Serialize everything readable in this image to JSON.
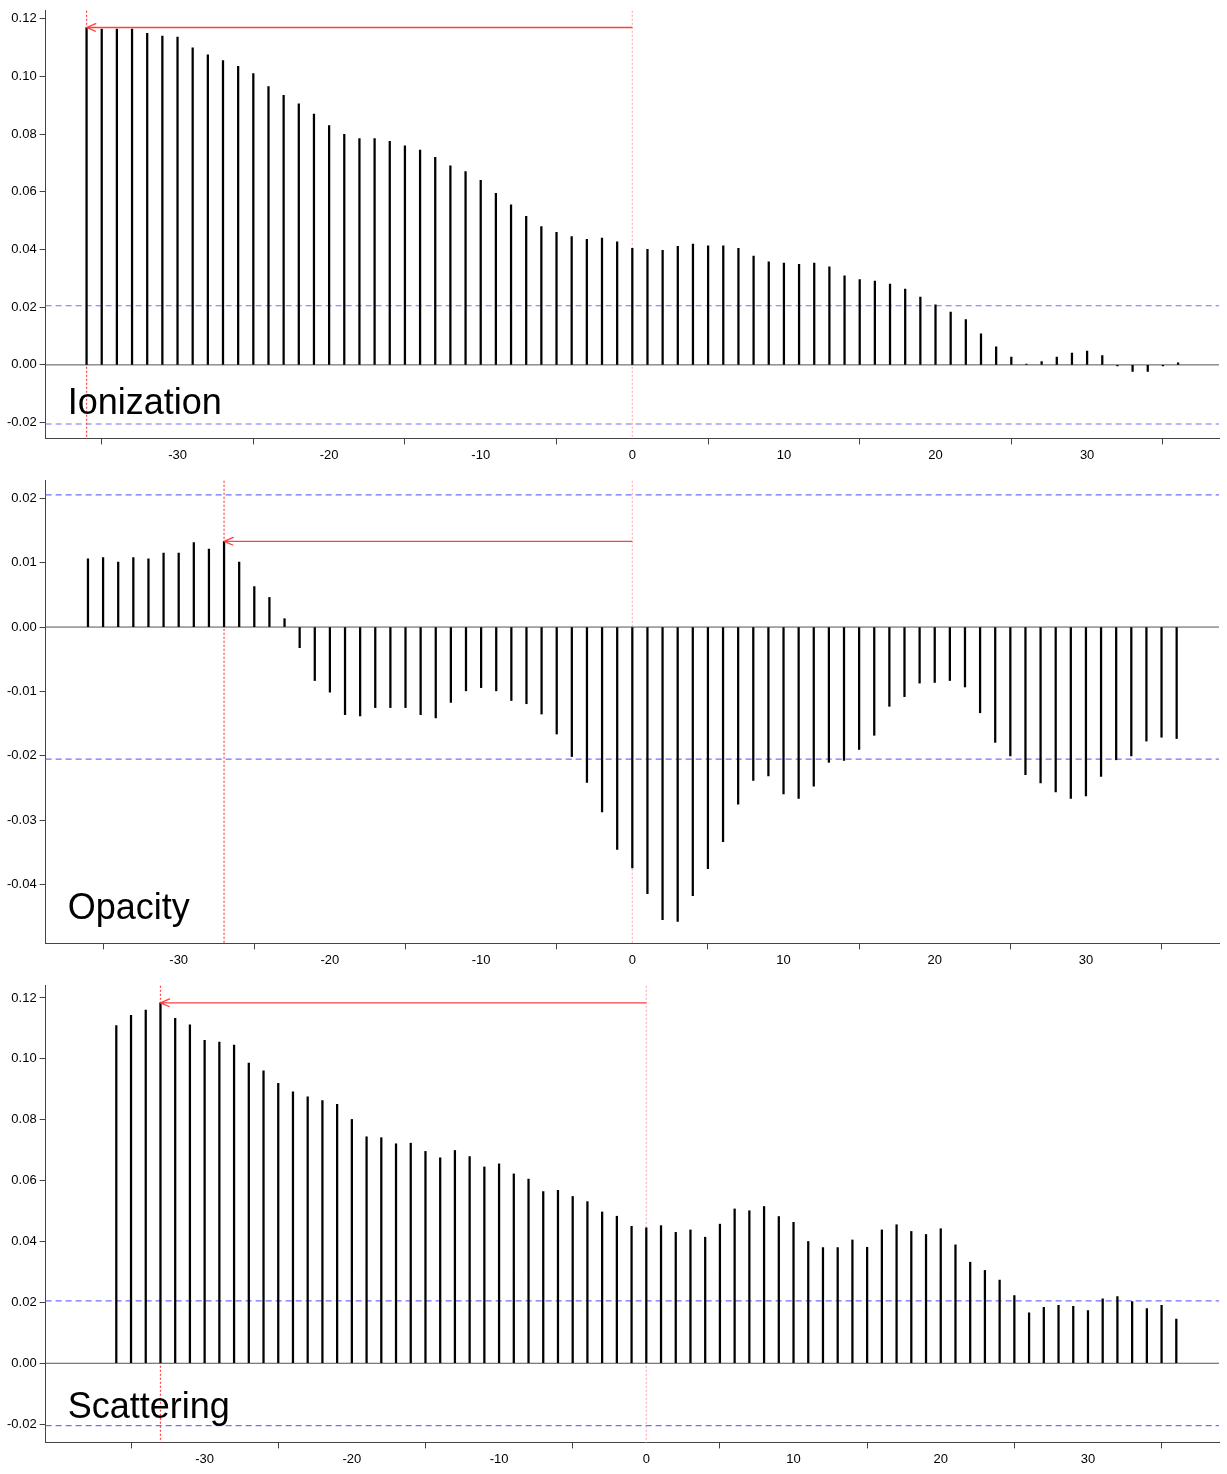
{
  "chart_data": [
    {
      "type": "bar",
      "annotations": [
        "Ionization"
      ],
      "grid": false,
      "legend": false,
      "series": [
        {
          "color": "#000000",
          "x": [
            -36,
            -35,
            -34,
            -33,
            -32,
            -31,
            -30,
            -29,
            -28,
            -27,
            -26,
            -25,
            -24,
            -23,
            -22,
            -21,
            -20,
            -19,
            -18,
            -17,
            -16,
            -15,
            -14,
            -13,
            -12,
            -11,
            -10,
            -9,
            -8,
            -7,
            -6,
            -5,
            -4,
            -3,
            -2,
            -1,
            0,
            1,
            2,
            3,
            4,
            5,
            6,
            7,
            8,
            9,
            10,
            11,
            12,
            13,
            14,
            15,
            16,
            17,
            18,
            19,
            20,
            21,
            22,
            23,
            24,
            25,
            26,
            27,
            28,
            29,
            30,
            31,
            32,
            33,
            34,
            35,
            36
          ],
          "values": [
            0.117,
            0.1165,
            0.1165,
            0.1165,
            0.115,
            0.114,
            0.1137,
            0.11,
            0.1075,
            0.1055,
            0.1035,
            0.101,
            0.0965,
            0.0935,
            0.0905,
            0.087,
            0.083,
            0.08,
            0.0785,
            0.0785,
            0.0775,
            0.076,
            0.0745,
            0.072,
            0.069,
            0.067,
            0.064,
            0.0595,
            0.0555,
            0.0515,
            0.048,
            0.046,
            0.0445,
            0.0435,
            0.044,
            0.0427,
            0.0404,
            0.0401,
            0.0397,
            0.0411,
            0.0419,
            0.0413,
            0.0413,
            0.0404,
            0.0377,
            0.0357,
            0.0353,
            0.0349,
            0.0353,
            0.034,
            0.0309,
            0.0296,
            0.0291,
            0.028,
            0.0263,
            0.0235,
            0.0208,
            0.0183,
            0.0157,
            0.0108,
            0.0063,
            0.0027,
            0.0003,
            0.0011,
            0.0027,
            0.0041,
            0.0048,
            0.0032,
            -0.0004,
            -0.0023,
            -0.0023,
            -0.0004,
            0.0007
          ]
        },
        {
          "type": "line",
          "color": "#ff4040",
          "x": [
            0,
            -36
          ],
          "values": [
            0.117,
            0.117
          ]
        }
      ],
      "xlim": [
        -38.7,
        38.7
      ],
      "xticks": [
        -30,
        -20,
        -10,
        0,
        10,
        20,
        30
      ],
      "ylim": [
        -0.0255,
        0.1228
      ],
      "yticks": [
        {
          "value": -0.02,
          "label": "-0.02"
        },
        {
          "value": 0,
          "label": "0.00"
        },
        {
          "value": 0.02,
          "label": "0.02"
        },
        {
          "value": 0.04,
          "label": "0.04"
        },
        {
          "value": 0.06,
          "label": "0.06"
        },
        {
          "value": 0.08,
          "label": "0.08"
        },
        {
          "value": 0.1,
          "label": "0.10"
        },
        {
          "value": 0.12,
          "label": "0.12"
        }
      ],
      "ref_lines": [
        {
          "axis": "x",
          "value": 0,
          "color": "#ffb0b8",
          "line_style": "dotted"
        },
        {
          "axis": "x",
          "value": -36,
          "color": "#ff4040",
          "line_style": "dotted"
        },
        {
          "axis": "y",
          "value": 0.0205,
          "color": "#7070ff",
          "line_style": "dashed"
        },
        {
          "axis": "y",
          "value": -0.0205,
          "color": "#7070ff",
          "line_style": "dashed"
        }
      ]
    },
    {
      "type": "bar",
      "annotations": [
        "Opacity"
      ],
      "grid": false,
      "legend": false,
      "series": [
        {
          "color": "#000000",
          "x": [
            -36,
            -35,
            -34,
            -33,
            -32,
            -31,
            -30,
            -29,
            -28,
            -27,
            -26,
            -25,
            -24,
            -23,
            -22,
            -21,
            -20,
            -19,
            -18,
            -17,
            -16,
            -15,
            -14,
            -13,
            -12,
            -11,
            -10,
            -9,
            -8,
            -7,
            -6,
            -5,
            -4,
            -3,
            -2,
            -1,
            0,
            1,
            2,
            3,
            4,
            5,
            6,
            7,
            8,
            9,
            10,
            11,
            12,
            13,
            14,
            15,
            16,
            17,
            18,
            19,
            20,
            21,
            22,
            23,
            24,
            25,
            26,
            27,
            28,
            29,
            30,
            31,
            32,
            33,
            34,
            35,
            36
          ],
          "values": [
            0.0106,
            0.0108,
            0.0101,
            0.0108,
            0.0106,
            0.0115,
            0.0115,
            0.0131,
            0.0121,
            0.0133,
            0.0101,
            0.0063,
            0.0046,
            0.0013,
            -0.0032,
            -0.0083,
            -0.0101,
            -0.0136,
            -0.0138,
            -0.0125,
            -0.0125,
            -0.0125,
            -0.0136,
            -0.0141,
            -0.0117,
            -0.0099,
            -0.0094,
            -0.0099,
            -0.0114,
            -0.0119,
            -0.0135,
            -0.0166,
            -0.0201,
            -0.0241,
            -0.0287,
            -0.0345,
            -0.0374,
            -0.0414,
            -0.0454,
            -0.0457,
            -0.0417,
            -0.0375,
            -0.0333,
            -0.0275,
            -0.0238,
            -0.0231,
            -0.0259,
            -0.0266,
            -0.0247,
            -0.021,
            -0.0207,
            -0.019,
            -0.0168,
            -0.0123,
            -0.0108,
            -0.0087,
            -0.0086,
            -0.0083,
            -0.0093,
            -0.0133,
            -0.0179,
            -0.02,
            -0.0229,
            -0.0242,
            -0.0256,
            -0.0266,
            -0.0262,
            -0.0232,
            -0.0206,
            -0.02,
            -0.0177,
            -0.0171,
            -0.0173
          ]
        },
        {
          "type": "line",
          "color": "#ff4040",
          "x": [
            0,
            -27
          ],
          "values": [
            0.0133,
            0.0133
          ]
        }
      ],
      "xlim": [
        -38.8,
        38.8
      ],
      "xticks": [
        -30,
        -20,
        -10,
        0,
        10,
        20,
        30
      ],
      "ylim": [
        -0.0491,
        0.0227
      ],
      "yticks": [
        {
          "value": -0.04,
          "label": "-0.04"
        },
        {
          "value": -0.03,
          "label": "-0.03"
        },
        {
          "value": -0.02,
          "label": "-0.02"
        },
        {
          "value": -0.01,
          "label": "-0.01"
        },
        {
          "value": 0,
          "label": "0.00"
        },
        {
          "value": 0.01,
          "label": "0.01"
        },
        {
          "value": 0.02,
          "label": "0.02"
        }
      ],
      "ref_lines": [
        {
          "axis": "x",
          "value": 0,
          "color": "#ffb0b8",
          "line_style": "dotted"
        },
        {
          "axis": "x",
          "value": -27,
          "color": "#ff4040",
          "line_style": "dotted"
        },
        {
          "axis": "y",
          "value": 0.0205,
          "color": "#7070ff",
          "line_style": "dashed"
        },
        {
          "axis": "y",
          "value": -0.0205,
          "color": "#7070ff",
          "line_style": "dashed"
        }
      ]
    },
    {
      "type": "bar",
      "annotations": [
        "Scattering"
      ],
      "grid": false,
      "legend": false,
      "series": [
        {
          "color": "#000000",
          "x": [
            -36,
            -35,
            -34,
            -33,
            -32,
            -31,
            -30,
            -29,
            -28,
            -27,
            -26,
            -25,
            -24,
            -23,
            -22,
            -21,
            -20,
            -19,
            -18,
            -17,
            -16,
            -15,
            -14,
            -13,
            -12,
            -11,
            -10,
            -9,
            -8,
            -7,
            -6,
            -5,
            -4,
            -3,
            -2,
            -1,
            0,
            1,
            2,
            3,
            4,
            5,
            6,
            7,
            8,
            9,
            10,
            11,
            12,
            13,
            14,
            15,
            16,
            17,
            18,
            19,
            20,
            21,
            22,
            23,
            24,
            25,
            26,
            27,
            28,
            29,
            30,
            31,
            32,
            33,
            34,
            35,
            36
          ],
          "values": [
            0.1109,
            0.1143,
            0.116,
            0.1184,
            0.1133,
            0.1112,
            0.1061,
            0.1055,
            0.1045,
            0.0986,
            0.0961,
            0.092,
            0.0892,
            0.0875,
            0.0863,
            0.0851,
            0.0801,
            0.0744,
            0.0741,
            0.0721,
            0.0723,
            0.0696,
            0.0675,
            0.0699,
            0.0679,
            0.0645,
            0.0655,
            0.0622,
            0.0605,
            0.0564,
            0.0568,
            0.0548,
            0.0531,
            0.0497,
            0.0483,
            0.045,
            0.0445,
            0.0452,
            0.043,
            0.0438,
            0.0414,
            0.0457,
            0.0507,
            0.0501,
            0.0515,
            0.0482,
            0.0463,
            0.04,
            0.038,
            0.038,
            0.0405,
            0.0381,
            0.0438,
            0.0455,
            0.0433,
            0.0423,
            0.0442,
            0.0389,
            0.0332,
            0.0305,
            0.0273,
            0.0222,
            0.0166,
            0.0184,
            0.019,
            0.0187,
            0.0173,
            0.0212,
            0.0219,
            0.0203,
            0.018,
            0.019,
            0.0145
          ]
        },
        {
          "type": "line",
          "color": "#ff4040",
          "x": [
            0,
            -33
          ],
          "values": [
            0.1184,
            0.1184
          ]
        }
      ],
      "xlim": [
        -40.8,
        38.9
      ],
      "xticks": [
        -30,
        -20,
        -10,
        0,
        10,
        20,
        30
      ],
      "ylim": [
        -0.026,
        0.124
      ],
      "yticks": [
        {
          "value": -0.02,
          "label": "-0.02"
        },
        {
          "value": 0,
          "label": "0.00"
        },
        {
          "value": 0.02,
          "label": "0.02"
        },
        {
          "value": 0.04,
          "label": "0.04"
        },
        {
          "value": 0.06,
          "label": "0.06"
        },
        {
          "value": 0.08,
          "label": "0.08"
        },
        {
          "value": 0.1,
          "label": "0.10"
        },
        {
          "value": 0.12,
          "label": "0.12"
        }
      ],
      "ref_lines": [
        {
          "axis": "x",
          "value": 0,
          "color": "#ffb0b8",
          "line_style": "dotted"
        },
        {
          "axis": "x",
          "value": -33,
          "color": "#ff4040",
          "line_style": "dotted"
        },
        {
          "axis": "y",
          "value": 0.0205,
          "color": "#7070ff",
          "line_style": "dashed"
        },
        {
          "axis": "y",
          "value": -0.0205,
          "color": "#7070ff",
          "line_style": "dashed"
        }
      ]
    }
  ]
}
